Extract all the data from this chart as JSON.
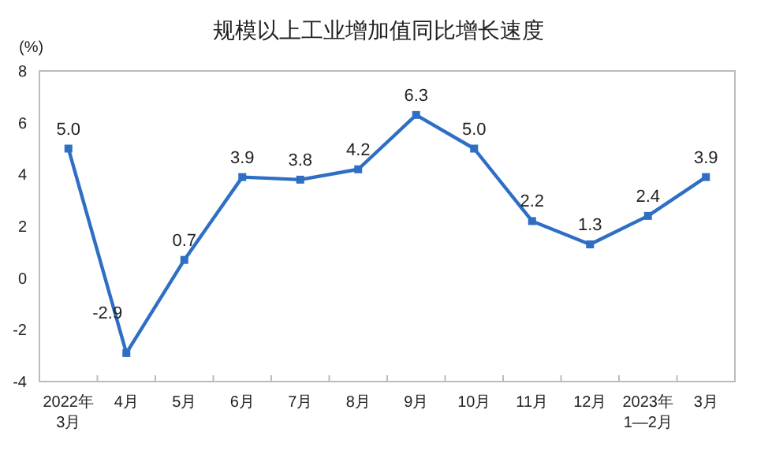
{
  "chart_data": {
    "type": "line",
    "title": "规模以上工业增加值同比增长速度",
    "ylabel": "(%)",
    "categories": [
      "2022年\n3月",
      "4月",
      "5月",
      "6月",
      "7月",
      "8月",
      "9月",
      "10月",
      "11月",
      "12月",
      "2023年\n1—2月",
      "3月"
    ],
    "series": [
      {
        "color": "#2e6fc4",
        "values": [
          5.0,
          -2.9,
          0.7,
          3.9,
          3.8,
          4.2,
          6.3,
          5.0,
          2.2,
          1.3,
          2.4,
          3.9
        ],
        "value_labels": [
          "5.0",
          "-2.9",
          "0.7",
          "3.9",
          "3.8",
          "4.2",
          "6.3",
          "5.0",
          "2.2",
          "1.3",
          "2.4",
          "3.9"
        ]
      }
    ],
    "ylim": [
      -4,
      8
    ],
    "yticks": [
      -4,
      -2,
      0,
      2,
      4,
      6,
      8
    ],
    "marker": "square",
    "line_style": "solid"
  }
}
